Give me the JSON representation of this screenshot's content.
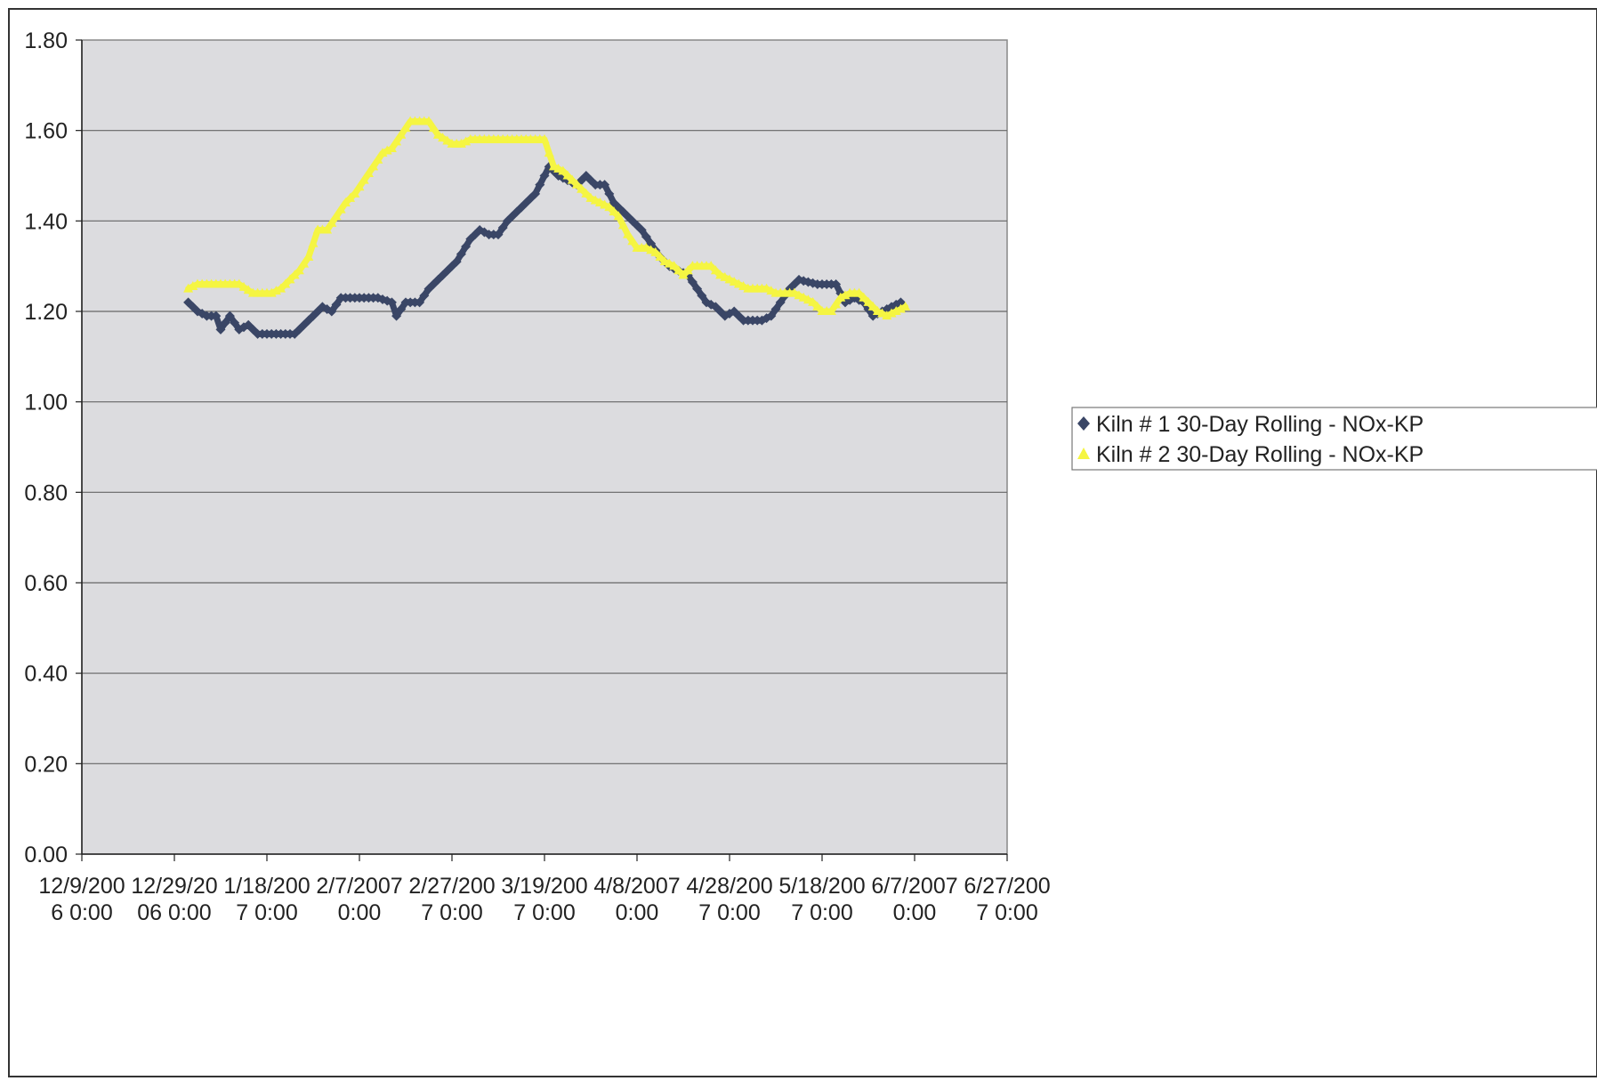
{
  "chart_data": {
    "type": "line",
    "title": "",
    "xlabel": "",
    "ylabel": "",
    "ylim": [
      0,
      1.8
    ],
    "xlim": [
      "2006-12-09",
      "2007-06-27"
    ],
    "grid": true,
    "legend_position": "right",
    "y_ticks": [
      "0.00",
      "0.20",
      "0.40",
      "0.60",
      "0.80",
      "1.00",
      "1.20",
      "1.40",
      "1.60",
      "1.80"
    ],
    "x_ticks": [
      {
        "date": "2006-12-09",
        "line1": "12/9/200",
        "line2": "6 0:00"
      },
      {
        "date": "2006-12-29",
        "line1": "12/29/20",
        "line2": "06 0:00"
      },
      {
        "date": "2007-01-18",
        "line1": "1/18/200",
        "line2": "7 0:00"
      },
      {
        "date": "2007-02-07",
        "line1": "2/7/2007",
        "line2": "0:00"
      },
      {
        "date": "2007-02-27",
        "line1": "2/27/200",
        "line2": "7 0:00"
      },
      {
        "date": "2007-03-19",
        "line1": "3/19/200",
        "line2": "7 0:00"
      },
      {
        "date": "2007-04-08",
        "line1": "4/8/2007",
        "line2": "0:00"
      },
      {
        "date": "2007-04-28",
        "line1": "4/28/200",
        "line2": "7 0:00"
      },
      {
        "date": "2007-05-18",
        "line1": "5/18/200",
        "line2": "7 0:00"
      },
      {
        "date": "2007-06-07",
        "line1": "6/7/2007",
        "line2": "0:00"
      },
      {
        "date": "2007-06-27",
        "line1": "6/27/200",
        "line2": "7 0:00"
      }
    ],
    "series": [
      {
        "name": "Kiln # 1 30-Day Rolling - NOx-KP",
        "color": "#3a4666",
        "marker": "diamond",
        "points": [
          [
            "2007-01-01",
            1.22
          ],
          [
            "2007-01-03",
            1.2
          ],
          [
            "2007-01-05",
            1.19
          ],
          [
            "2007-01-07",
            1.19
          ],
          [
            "2007-01-08",
            1.16
          ],
          [
            "2007-01-10",
            1.19
          ],
          [
            "2007-01-12",
            1.16
          ],
          [
            "2007-01-14",
            1.17
          ],
          [
            "2007-01-16",
            1.15
          ],
          [
            "2007-01-20",
            1.15
          ],
          [
            "2007-01-24",
            1.15
          ],
          [
            "2007-01-26",
            1.17
          ],
          [
            "2007-01-28",
            1.19
          ],
          [
            "2007-01-30",
            1.21
          ],
          [
            "2007-02-01",
            1.2
          ],
          [
            "2007-02-03",
            1.23
          ],
          [
            "2007-02-07",
            1.23
          ],
          [
            "2007-02-11",
            1.23
          ],
          [
            "2007-02-14",
            1.22
          ],
          [
            "2007-02-15",
            1.19
          ],
          [
            "2007-02-17",
            1.22
          ],
          [
            "2007-02-20",
            1.22
          ],
          [
            "2007-02-22",
            1.25
          ],
          [
            "2007-02-25",
            1.28
          ],
          [
            "2007-02-28",
            1.31
          ],
          [
            "2007-03-03",
            1.36
          ],
          [
            "2007-03-05",
            1.38
          ],
          [
            "2007-03-07",
            1.37
          ],
          [
            "2007-03-09",
            1.37
          ],
          [
            "2007-03-11",
            1.4
          ],
          [
            "2007-03-13",
            1.42
          ],
          [
            "2007-03-15",
            1.44
          ],
          [
            "2007-03-17",
            1.46
          ],
          [
            "2007-03-19",
            1.5
          ],
          [
            "2007-03-20",
            1.52
          ],
          [
            "2007-03-22",
            1.5
          ],
          [
            "2007-03-24",
            1.49
          ],
          [
            "2007-03-26",
            1.48
          ],
          [
            "2007-03-28",
            1.5
          ],
          [
            "2007-03-30",
            1.48
          ],
          [
            "2007-04-01",
            1.48
          ],
          [
            "2007-04-03",
            1.44
          ],
          [
            "2007-04-05",
            1.42
          ],
          [
            "2007-04-07",
            1.4
          ],
          [
            "2007-04-09",
            1.38
          ],
          [
            "2007-04-11",
            1.35
          ],
          [
            "2007-04-13",
            1.32
          ],
          [
            "2007-04-15",
            1.3
          ],
          [
            "2007-04-17",
            1.29
          ],
          [
            "2007-04-19",
            1.28
          ],
          [
            "2007-04-21",
            1.25
          ],
          [
            "2007-04-23",
            1.22
          ],
          [
            "2007-04-25",
            1.21
          ],
          [
            "2007-04-27",
            1.19
          ],
          [
            "2007-04-29",
            1.2
          ],
          [
            "2007-05-01",
            1.18
          ],
          [
            "2007-05-05",
            1.18
          ],
          [
            "2007-05-07",
            1.19
          ],
          [
            "2007-05-11",
            1.25
          ],
          [
            "2007-05-13",
            1.27
          ],
          [
            "2007-05-17",
            1.26
          ],
          [
            "2007-05-21",
            1.26
          ],
          [
            "2007-05-23",
            1.22
          ],
          [
            "2007-05-25",
            1.23
          ],
          [
            "2007-05-27",
            1.22
          ],
          [
            "2007-05-29",
            1.19
          ],
          [
            "2007-06-02",
            1.21
          ],
          [
            "2007-06-04",
            1.22
          ]
        ]
      },
      {
        "name": "Kiln # 2 30-Day Rolling - NOx-KP",
        "color": "#f5f542",
        "marker": "triangle",
        "points": [
          [
            "2007-01-01",
            1.25
          ],
          [
            "2007-01-03",
            1.26
          ],
          [
            "2007-01-07",
            1.26
          ],
          [
            "2007-01-10",
            1.26
          ],
          [
            "2007-01-12",
            1.26
          ],
          [
            "2007-01-15",
            1.24
          ],
          [
            "2007-01-19",
            1.24
          ],
          [
            "2007-01-21",
            1.25
          ],
          [
            "2007-01-23",
            1.27
          ],
          [
            "2007-01-25",
            1.29
          ],
          [
            "2007-01-27",
            1.32
          ],
          [
            "2007-01-29",
            1.38
          ],
          [
            "2007-01-31",
            1.38
          ],
          [
            "2007-02-02",
            1.41
          ],
          [
            "2007-02-04",
            1.44
          ],
          [
            "2007-02-06",
            1.46
          ],
          [
            "2007-02-08",
            1.49
          ],
          [
            "2007-02-10",
            1.52
          ],
          [
            "2007-02-12",
            1.55
          ],
          [
            "2007-02-14",
            1.56
          ],
          [
            "2007-02-16",
            1.59
          ],
          [
            "2007-02-18",
            1.62
          ],
          [
            "2007-02-22",
            1.62
          ],
          [
            "2007-02-24",
            1.59
          ],
          [
            "2007-02-27",
            1.57
          ],
          [
            "2007-03-01",
            1.57
          ],
          [
            "2007-03-03",
            1.58
          ],
          [
            "2007-03-07",
            1.58
          ],
          [
            "2007-03-11",
            1.58
          ],
          [
            "2007-03-15",
            1.58
          ],
          [
            "2007-03-19",
            1.58
          ],
          [
            "2007-03-21",
            1.52
          ],
          [
            "2007-03-23",
            1.51
          ],
          [
            "2007-03-25",
            1.49
          ],
          [
            "2007-03-27",
            1.47
          ],
          [
            "2007-03-29",
            1.45
          ],
          [
            "2007-03-31",
            1.44
          ],
          [
            "2007-04-02",
            1.43
          ],
          [
            "2007-04-04",
            1.41
          ],
          [
            "2007-04-06",
            1.37
          ],
          [
            "2007-04-08",
            1.34
          ],
          [
            "2007-04-10",
            1.34
          ],
          [
            "2007-04-12",
            1.33
          ],
          [
            "2007-04-14",
            1.31
          ],
          [
            "2007-04-16",
            1.3
          ],
          [
            "2007-04-18",
            1.28
          ],
          [
            "2007-04-20",
            1.3
          ],
          [
            "2007-04-22",
            1.3
          ],
          [
            "2007-04-24",
            1.3
          ],
          [
            "2007-04-26",
            1.28
          ],
          [
            "2007-04-28",
            1.27
          ],
          [
            "2007-04-30",
            1.26
          ],
          [
            "2007-05-02",
            1.25
          ],
          [
            "2007-05-06",
            1.25
          ],
          [
            "2007-05-08",
            1.24
          ],
          [
            "2007-05-12",
            1.24
          ],
          [
            "2007-05-14",
            1.23
          ],
          [
            "2007-05-16",
            1.22
          ],
          [
            "2007-05-18",
            1.2
          ],
          [
            "2007-05-20",
            1.2
          ],
          [
            "2007-05-22",
            1.23
          ],
          [
            "2007-05-24",
            1.24
          ],
          [
            "2007-05-26",
            1.24
          ],
          [
            "2007-05-28",
            1.22
          ],
          [
            "2007-05-30",
            1.2
          ],
          [
            "2007-06-01",
            1.19
          ],
          [
            "2007-06-03",
            1.2
          ],
          [
            "2007-06-05",
            1.21
          ]
        ]
      }
    ]
  }
}
